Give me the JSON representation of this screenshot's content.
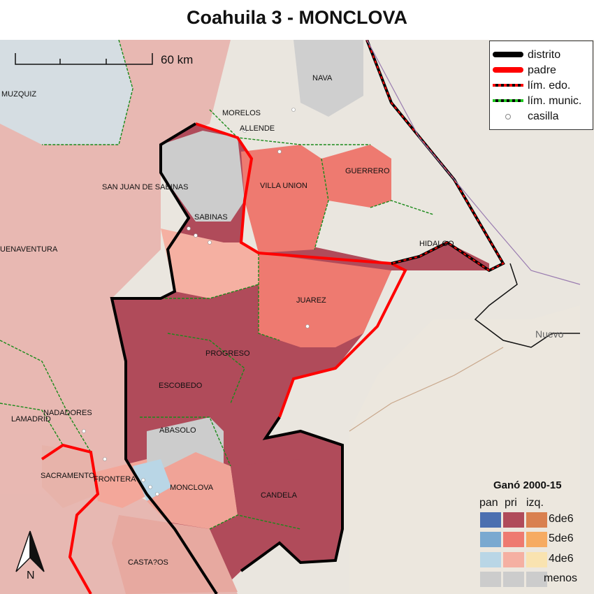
{
  "title": "Coahuila 3 - MONCLOVA",
  "scale_bar": {
    "label": "60 km"
  },
  "north_arrow": {
    "label": "N"
  },
  "legend": {
    "items": [
      {
        "label": "distrito",
        "symbol": "thick-black-line"
      },
      {
        "label": "padre",
        "symbol": "thick-red-line"
      },
      {
        "label": "lím. edo.",
        "symbol": "red-black-dashed-line"
      },
      {
        "label": "lím. munic.",
        "symbol": "green-black-dashed-line"
      },
      {
        "label": "casilla",
        "symbol": "small-open-circle"
      }
    ]
  },
  "gano_legend": {
    "title": "Ganó 2000-15",
    "columns": [
      "pan",
      "pri",
      "izq."
    ],
    "rows": [
      {
        "label": "6de6",
        "colors": [
          "#4b6fb0",
          "#b04b5a",
          "#d9804f"
        ]
      },
      {
        "label": "5de6",
        "colors": [
          "#7aa9d0",
          "#ee7a70",
          "#f6ab62"
        ]
      },
      {
        "label": "4de6",
        "colors": [
          "#b9d6e6",
          "#f5b0a2",
          "#f9e3b0"
        ]
      },
      {
        "label": "menos",
        "colors": [
          "#cccccc",
          "#cccccc",
          "#cccccc"
        ]
      }
    ]
  },
  "municipios": [
    "MUZQUIZ",
    "NAVA",
    "MORELOS",
    "ALLENDE",
    "SAN JUAN DE SABINAS",
    "VILLA UNION",
    "GUERRERO",
    "SABINAS",
    "HIDALGO",
    "UENAVENTURA",
    "JUAREZ",
    "PROGRESO",
    "ESCOBEDO",
    "NADADORES",
    "LAMADRID",
    "ABASOLO",
    "SACRAMENTO",
    "FRONTERA",
    "MONCLOVA",
    "CANDELA",
    "CASTA?OS"
  ],
  "basemap_labels": {
    "city": "Nuevo"
  },
  "colors": {
    "background": "#eae6df",
    "district_outline": "#000000",
    "parent_outline": "#ff0000",
    "muni_line": "#1a8a1a"
  }
}
